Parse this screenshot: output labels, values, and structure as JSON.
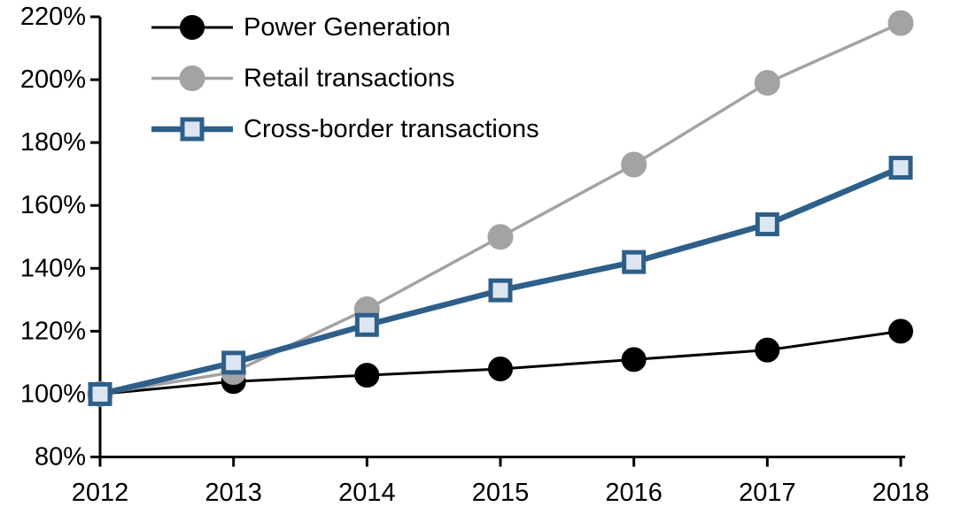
{
  "chart_data": {
    "type": "line",
    "title": "",
    "x_labels": [
      "2012",
      "2013",
      "2014",
      "2015",
      "2016",
      "2017",
      "2018"
    ],
    "series": [
      {
        "name": "Power Generation",
        "values": [
          100,
          104,
          106,
          108,
          111,
          114,
          120
        ],
        "line_color": "#000000",
        "line_width": 3,
        "marker": "circle",
        "marker_fill": "#000000",
        "marker_stroke": "#000000",
        "marker_size": 27
      },
      {
        "name": "Retail transactions",
        "values": [
          100,
          107,
          127,
          150,
          173,
          199,
          218
        ],
        "line_color": "#a3a3a3",
        "line_width": 3.5,
        "marker": "circle",
        "marker_fill": "#a3a3a3",
        "marker_stroke": "#a3a3a3",
        "marker_size": 28
      },
      {
        "name": "Cross-border transactions",
        "values": [
          100,
          110,
          122,
          133,
          142,
          154,
          172
        ],
        "line_color": "#2d5f8a",
        "line_width": 6.5,
        "marker": "square",
        "marker_fill": "#dce6f2",
        "marker_stroke": "#2d5f8a",
        "marker_size": 27
      }
    ],
    "ylim": [
      80,
      220
    ],
    "y_tick_step": 20,
    "y_tick_labels": [
      "80%",
      "100%",
      "120%",
      "140%",
      "160%",
      "180%",
      "200%",
      "220%"
    ],
    "grid": false,
    "legend_position": "top-left-inside",
    "axis_color": "#000000",
    "text_color": "#000000"
  }
}
